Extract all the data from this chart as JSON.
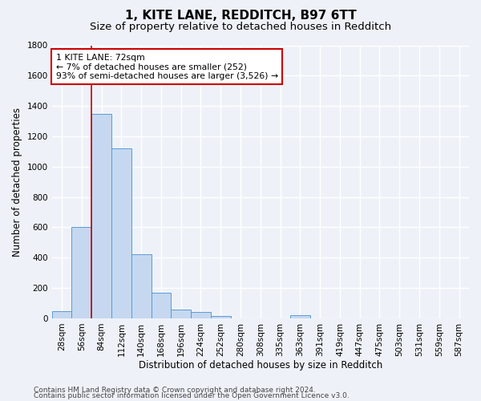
{
  "title1": "1, KITE LANE, REDDITCH, B97 6TT",
  "title2": "Size of property relative to detached houses in Redditch",
  "xlabel": "Distribution of detached houses by size in Redditch",
  "ylabel": "Number of detached properties",
  "categories": [
    "28sqm",
    "56sqm",
    "84sqm",
    "112sqm",
    "140sqm",
    "168sqm",
    "196sqm",
    "224sqm",
    "252sqm",
    "280sqm",
    "308sqm",
    "335sqm",
    "363sqm",
    "391sqm",
    "419sqm",
    "447sqm",
    "475sqm",
    "503sqm",
    "531sqm",
    "559sqm",
    "587sqm"
  ],
  "bar_values": [
    50,
    600,
    1350,
    1120,
    425,
    170,
    60,
    40,
    15,
    0,
    0,
    0,
    20,
    0,
    0,
    0,
    0,
    0,
    0,
    0,
    0
  ],
  "bar_color": "#c5d8f0",
  "bar_edge_color": "#5b9bd5",
  "vline_color": "#cc0000",
  "annotation_text": "1 KITE LANE: 72sqm\n← 7% of detached houses are smaller (252)\n93% of semi-detached houses are larger (3,526) →",
  "annotation_box_color": "white",
  "annotation_box_edge_color": "#cc0000",
  "ylim": [
    0,
    1800
  ],
  "yticks": [
    0,
    200,
    400,
    600,
    800,
    1000,
    1200,
    1400,
    1600,
    1800
  ],
  "footer1": "Contains HM Land Registry data © Crown copyright and database right 2024.",
  "footer2": "Contains public sector information licensed under the Open Government Licence v3.0.",
  "bg_color": "#eef2f8",
  "plot_bg_color": "#eef2f8",
  "grid_color": "#ffffff",
  "title1_fontsize": 11,
  "title2_fontsize": 9.5,
  "axis_label_fontsize": 8.5,
  "tick_fontsize": 7.5,
  "footer_fontsize": 6.5,
  "vline_position": 1.5
}
